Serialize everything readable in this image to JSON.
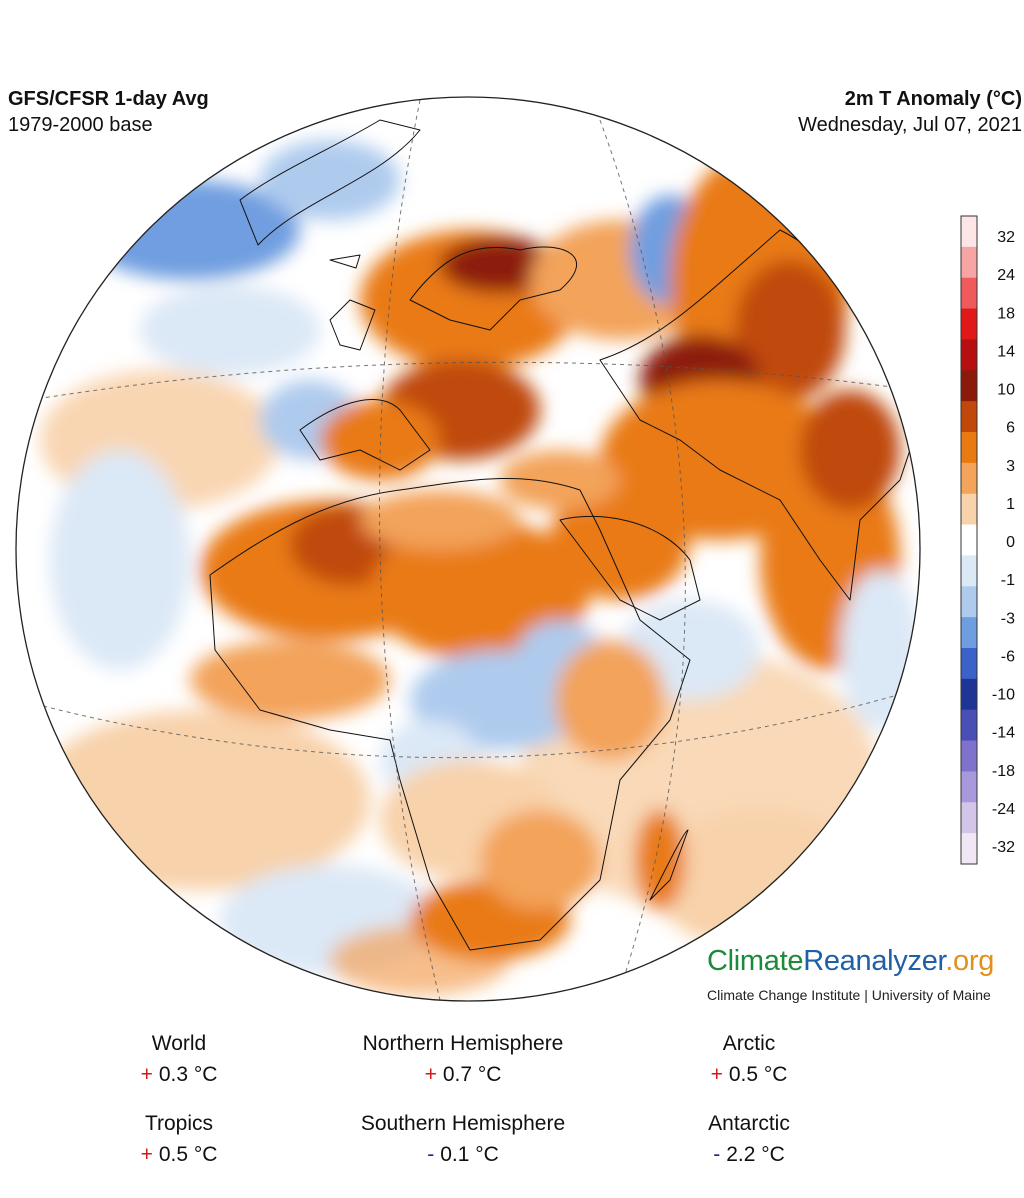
{
  "header": {
    "left_title": "GFS/CFSR 1-day Avg",
    "left_subtitle": "1979-2000 base",
    "right_title": "2m T Anomaly (°C)",
    "right_subtitle": "Wednesday, Jul 07, 2021"
  },
  "colorbar": {
    "ticks": [
      "32",
      "24",
      "18",
      "14",
      "10",
      "6",
      "3",
      "1",
      "0",
      "-1",
      "-3",
      "-6",
      "-10",
      "-14",
      "-18",
      "-24",
      "-32"
    ],
    "colors": [
      "#fde6e6",
      "#f6a4a4",
      "#ef5b5b",
      "#e01818",
      "#b50f0f",
      "#8c1a0a",
      "#c0480a",
      "#e97a12",
      "#f3a35a",
      "#f8d2aa",
      "#ffffff",
      "#dbe8f6",
      "#aecbee",
      "#6f9ee0",
      "#3a62c8",
      "#1e3596",
      "#4a4fb6",
      "#7f72cc",
      "#a899dc",
      "#d3c4ea",
      "#f1e6f4"
    ]
  },
  "brand": {
    "part1": "Climate",
    "part2": "Reanalyzer",
    "part3": ".org",
    "subtitle": "Climate Change Institute | University of Maine"
  },
  "stats": {
    "world": {
      "label": "World",
      "sign": "+",
      "value": "0.3 °C"
    },
    "nh": {
      "label": "Northern Hemisphere",
      "sign": "+",
      "value": "0.7 °C"
    },
    "arctic": {
      "label": "Arctic",
      "sign": "+",
      "value": "0.5 °C"
    },
    "tropics": {
      "label": "Tropics",
      "sign": "+",
      "value": "0.5 °C"
    },
    "sh": {
      "label": "Southern Hemisphere",
      "sign": "-",
      "value": "0.1 °C"
    },
    "antarctic": {
      "label": "Antarctic",
      "sign": "-",
      "value": "2.2 °C"
    }
  },
  "colors": {
    "positive": "#d21a1a",
    "negative": "#1b2a8a",
    "ocean_base": "#ffffff",
    "warm": "#f0913a",
    "hot": "#a02a08",
    "cool": "#b8d2f0",
    "cold": "#5a86d8"
  }
}
